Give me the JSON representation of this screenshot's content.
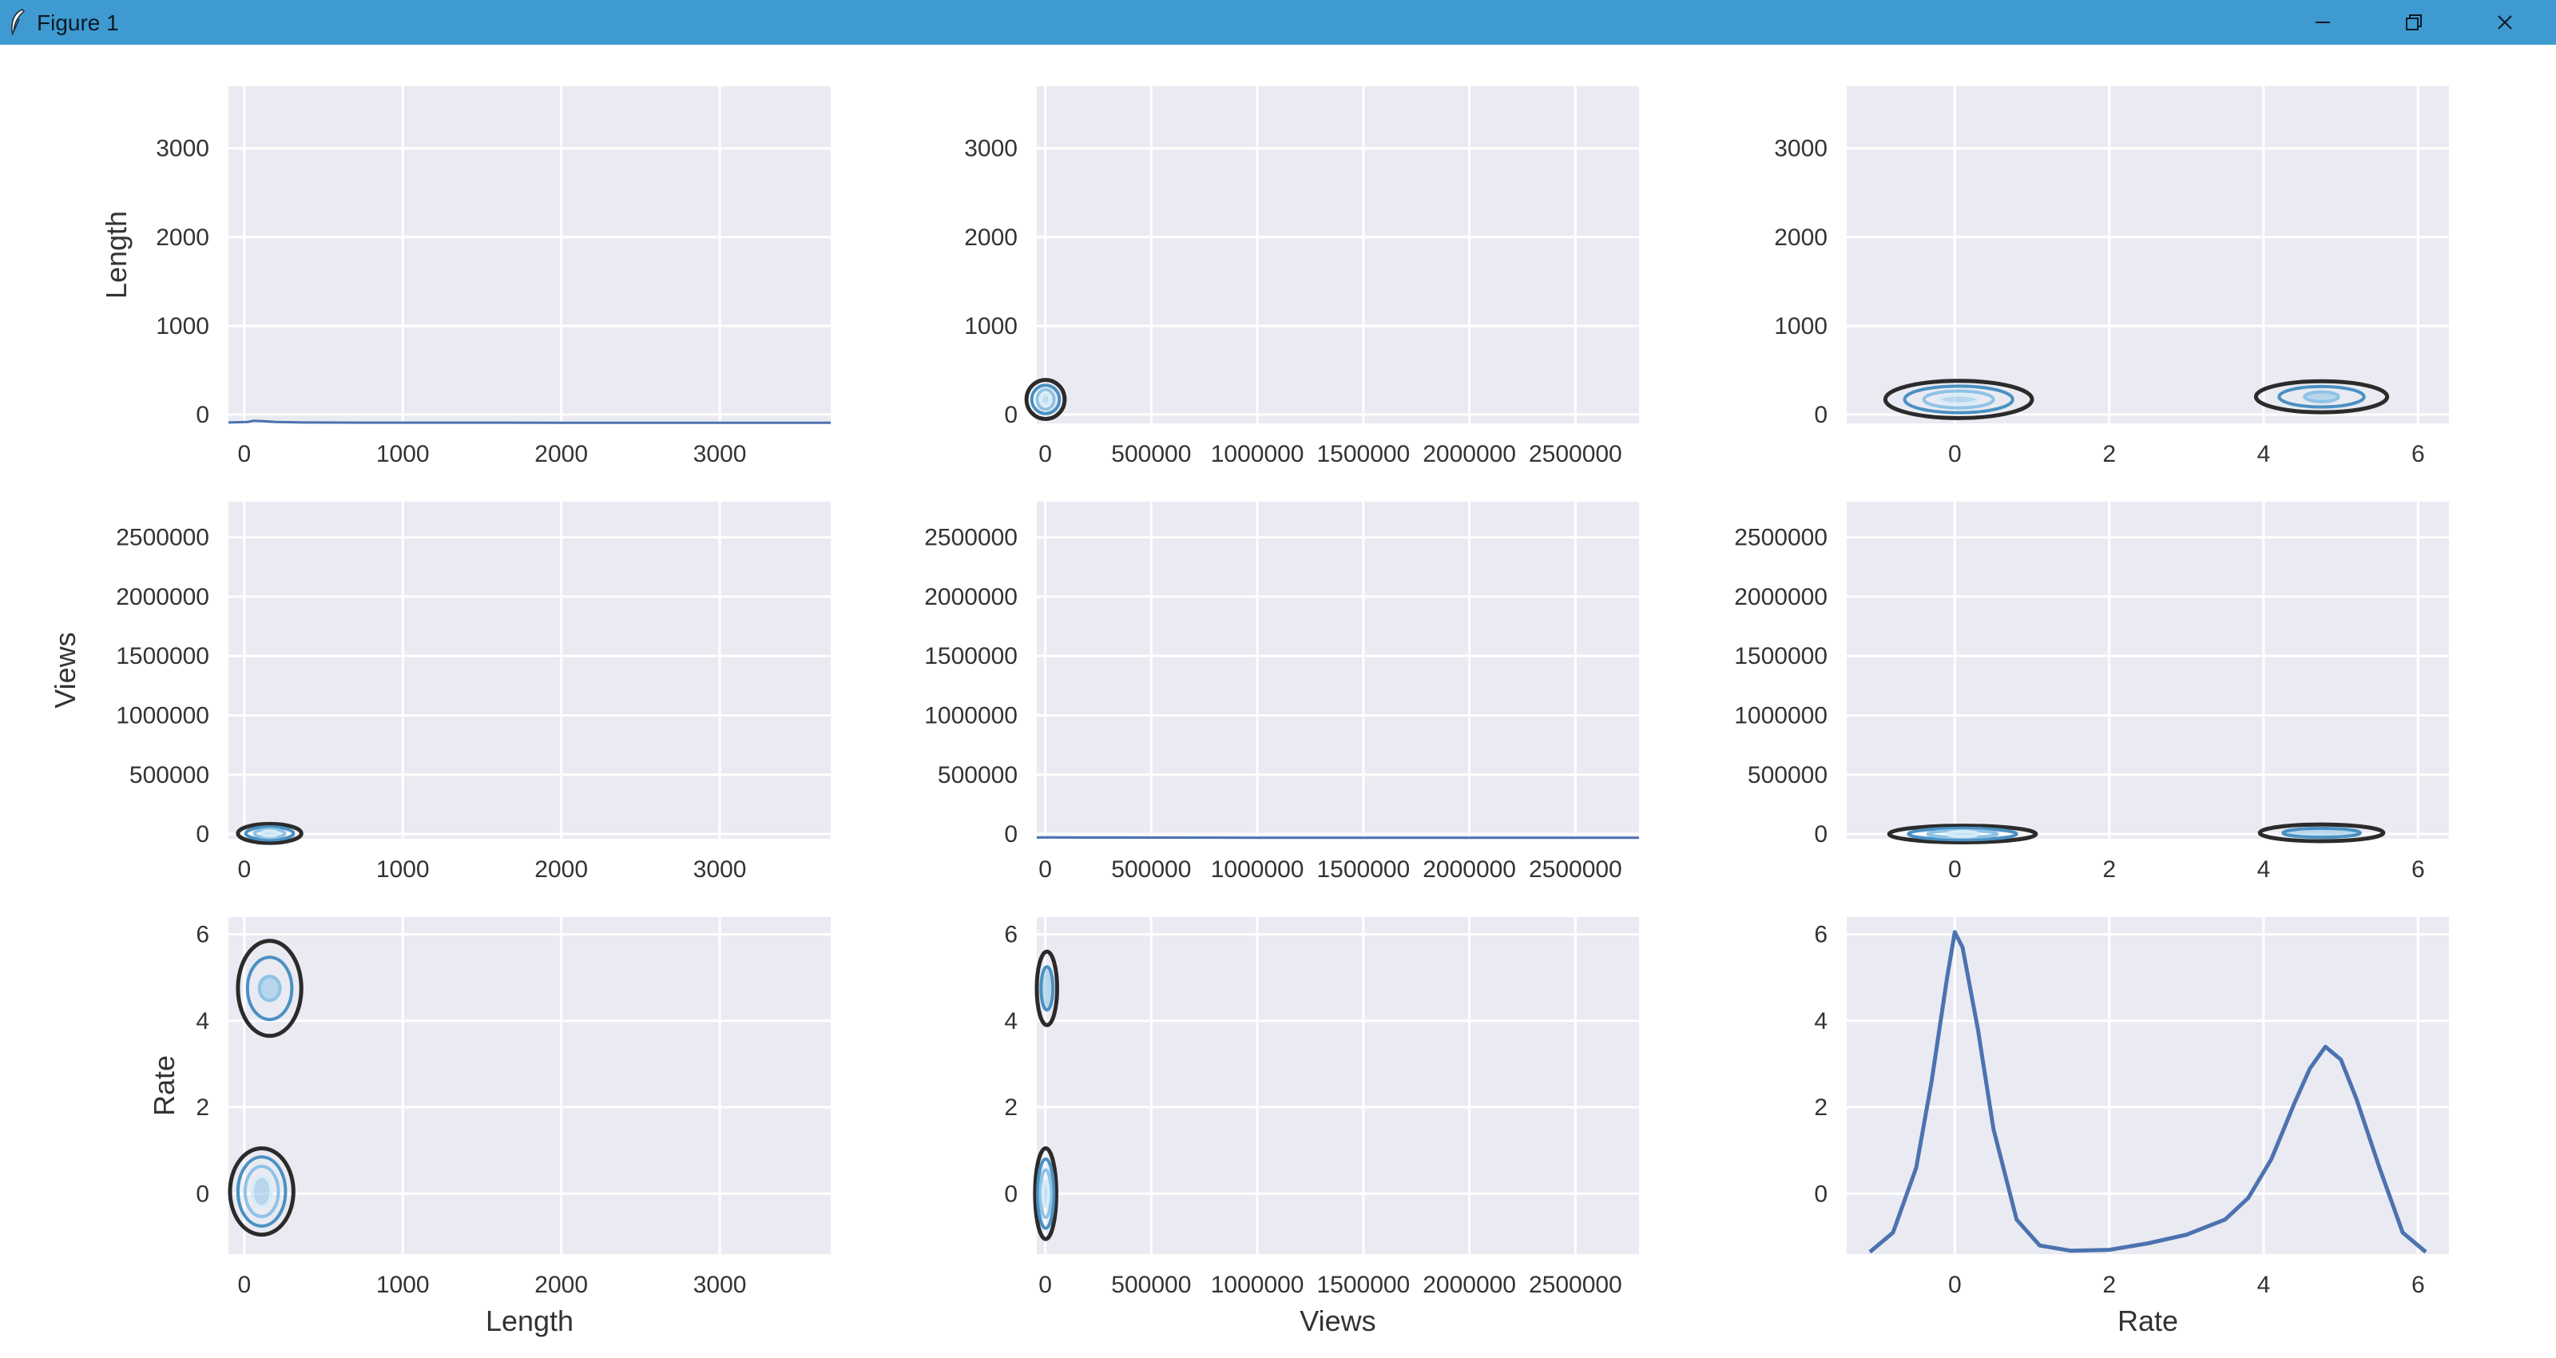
{
  "window": {
    "title": "Figure 1",
    "icons": {
      "app": "feather-icon",
      "minimize": "minimize-icon",
      "maximize": "restore-icon",
      "close": "close-icon"
    },
    "colors": {
      "titlebar": "#3e9ad1"
    }
  },
  "chart_data": {
    "type": "pairgrid",
    "style": {
      "grid": true,
      "background": "#eaeaf2",
      "line_color": "#4c72b0",
      "contour_colors": [
        "#2b2b2b",
        "#4a90c2",
        "#8ec3e6",
        "#d6ecf8"
      ]
    },
    "variables": [
      "Length",
      "Views",
      "Rate"
    ],
    "axes": {
      "Length": {
        "lim": [
          -100,
          3700
        ],
        "ticks": [
          0,
          1000,
          2000,
          3000
        ],
        "tick_labels": [
          "0",
          "1000",
          "2000",
          "3000"
        ]
      },
      "Views": {
        "lim": [
          -40000,
          2800000
        ],
        "x_ticks": [
          0,
          500000,
          1000000,
          1500000,
          2000000,
          2500000
        ],
        "x_tick_labels": [
          "0",
          "500000",
          "1000000",
          "1500000",
          "2000000",
          "2500000"
        ],
        "y_ticks": [
          0,
          500000,
          1000000,
          1500000,
          2000000,
          2500000
        ],
        "y_tick_labels": [
          "0",
          "500000",
          "1000000",
          "1500000",
          "2000000",
          "2500000"
        ]
      },
      "Rate": {
        "xlim": [
          -1.4,
          6.4
        ],
        "ylim": [
          -1.4,
          6.4
        ],
        "ticks": [
          0,
          2,
          4,
          6
        ],
        "tick_labels": [
          "0",
          "2",
          "4",
          "6"
        ]
      }
    },
    "diagonal": {
      "Length": {
        "x": [
          -100,
          20,
          60,
          120,
          200,
          400,
          800,
          2000,
          3700
        ],
        "y": [
          -90,
          -85,
          -70,
          -75,
          -85,
          -90,
          -92,
          -93,
          -93
        ]
      },
      "Views": {
        "x": [
          -40000,
          0,
          50000,
          200000,
          1000000,
          2800000
        ],
        "y": [
          -30000,
          -28000,
          -29000,
          -30000,
          -31000,
          -31000
        ]
      },
      "Rate": {
        "x": [
          -1.1,
          -0.8,
          -0.5,
          -0.3,
          -0.1,
          0,
          0.1,
          0.3,
          0.5,
          0.8,
          1.1,
          1.5,
          2,
          2.5,
          3,
          3.5,
          3.8,
          4.1,
          4.4,
          4.6,
          4.8,
          5,
          5.2,
          5.5,
          5.8,
          6.1
        ],
        "y": [
          -1.35,
          -0.9,
          0.6,
          2.6,
          5.0,
          6.05,
          5.7,
          3.8,
          1.5,
          -0.6,
          -1.2,
          -1.32,
          -1.3,
          -1.15,
          -0.95,
          -0.6,
          -0.1,
          0.8,
          2.1,
          2.9,
          3.4,
          3.1,
          2.2,
          0.6,
          -0.9,
          -1.35
        ]
      }
    },
    "kde_blobs": [
      {
        "row": 0,
        "col": 1,
        "cx": 1500,
        "cy": 170,
        "rx": [
          90000,
          65000,
          40000,
          20000
        ],
        "ry": [
          220,
          160,
          110,
          60
        ]
      },
      {
        "row": 0,
        "col": 2,
        "cx": 0.05,
        "cy": 170,
        "rx": [
          0.95,
          0.7,
          0.45,
          0.25
        ],
        "ry": [
          210,
          150,
          95,
          50
        ]
      },
      {
        "row": 0,
        "col": 2,
        "cx": 4.75,
        "cy": 200,
        "rx": [
          0.85,
          0.55,
          0.22
        ],
        "ry": [
          175,
          115,
          55
        ]
      },
      {
        "row": 1,
        "col": 0,
        "cx": 160,
        "cy": 5000,
        "rx": [
          200,
          150,
          95,
          50
        ],
        "ry": [
          80000,
          55000,
          35000,
          18000
        ]
      },
      {
        "row": 1,
        "col": 2,
        "cx": 0.1,
        "cy": 0,
        "rx": [
          0.95,
          0.7,
          0.45,
          0.2
        ],
        "ry": [
          70000,
          48000,
          28000,
          14000
        ]
      },
      {
        "row": 1,
        "col": 2,
        "cx": 4.75,
        "cy": 10000,
        "rx": [
          0.8,
          0.5
        ],
        "ry": [
          70000,
          38000
        ]
      },
      {
        "row": 2,
        "col": 0,
        "cx": 160,
        "cy": 4.75,
        "rx": [
          200,
          140,
          65
        ],
        "ry": [
          1.1,
          0.72,
          0.28
        ]
      },
      {
        "row": 2,
        "col": 0,
        "cx": 110,
        "cy": 0.05,
        "rx": [
          200,
          150,
          105,
          60
        ],
        "ry": [
          1.0,
          0.8,
          0.58,
          0.35
        ]
      },
      {
        "row": 2,
        "col": 1,
        "cx": 8000,
        "cy": 4.75,
        "rx": [
          48000,
          28000
        ],
        "ry": [
          0.85,
          0.5
        ]
      },
      {
        "row": 2,
        "col": 1,
        "cx": 2000,
        "cy": 0.0,
        "rx": [
          50000,
          38000,
          25000,
          13000
        ],
        "ry": [
          1.05,
          0.8,
          0.55,
          0.3
        ]
      }
    ],
    "xlabels": [
      "Length",
      "Views",
      "Rate"
    ],
    "ylabels": [
      "Length",
      "Views",
      "Rate"
    ]
  }
}
